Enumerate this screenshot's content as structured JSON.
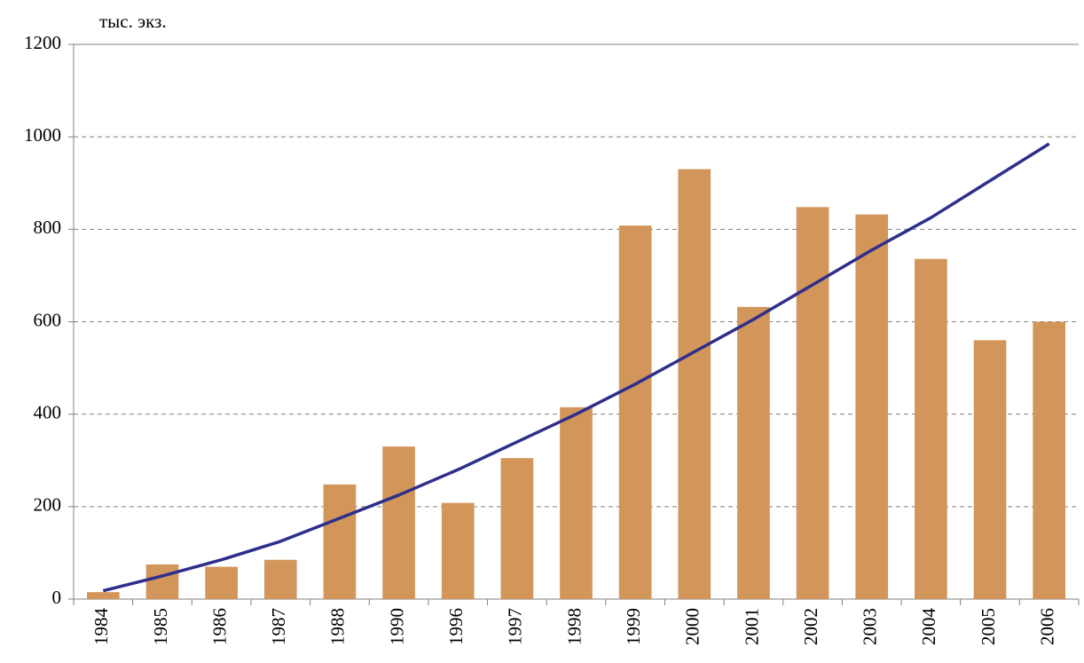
{
  "chart_data": {
    "type": "bar-line",
    "y_label": "тыс. экз.",
    "categories": [
      "1984",
      "1985",
      "1986",
      "1987",
      "1988",
      "1990",
      "1996",
      "1997",
      "1998",
      "1999",
      "2000",
      "2001",
      "2002",
      "2003",
      "2004",
      "2005",
      "2006"
    ],
    "series": [
      {
        "type": "bar",
        "color": "#d2955a",
        "values": [
          15,
          75,
          70,
          85,
          248,
          330,
          208,
          305,
          415,
          808,
          930,
          632,
          848,
          832,
          736,
          560,
          600
        ]
      },
      {
        "type": "line",
        "color": "#2e2e8c",
        "values": [
          18,
          50,
          85,
          125,
          175,
          225,
          280,
          340,
          400,
          465,
          535,
          605,
          680,
          755,
          825,
          905,
          985
        ]
      }
    ],
    "ylim": [
      0,
      1200
    ],
    "yticks": [
      0,
      200,
      400,
      600,
      800,
      1000,
      1200
    ],
    "grid": true
  }
}
